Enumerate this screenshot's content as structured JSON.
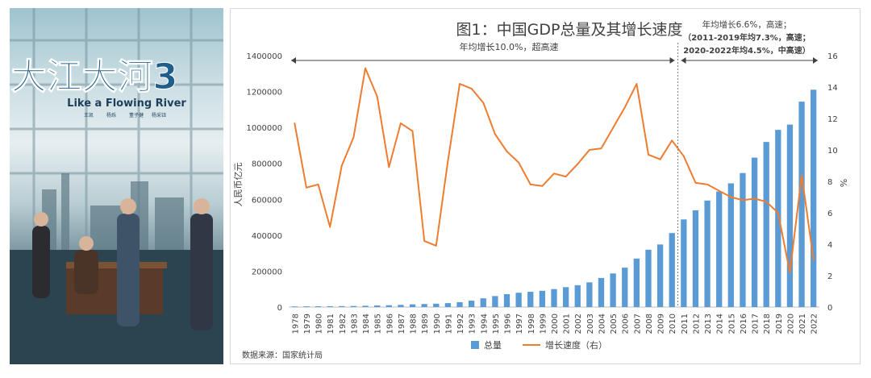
{
  "poster": {
    "title": "大江大河3",
    "subtitle": "Like a Flowing River",
    "cast": [
      "王凯",
      "杨烁",
      "董子健",
      "杨采钰"
    ]
  },
  "chart_data": {
    "type": "bar",
    "title": "图1：中国GDP总量及其增长速度",
    "ylabel": "人民币亿元",
    "y2label": "%",
    "source": "数据来源：国家统计局",
    "ylim": [
      0,
      1400000
    ],
    "y2lim": [
      0,
      16
    ],
    "yticks": [
      "0",
      "200000",
      "400000",
      "600000",
      "800000",
      "1000000",
      "1200000",
      "1400000"
    ],
    "y2ticks": [
      "0",
      "2",
      "4",
      "6",
      "8",
      "10",
      "12",
      "14",
      "16"
    ],
    "legend_position": "bottom",
    "categories": [
      "1978",
      "1979",
      "1980",
      "1981",
      "1982",
      "1983",
      "1984",
      "1985",
      "1986",
      "1987",
      "1988",
      "1989",
      "1990",
      "1991",
      "1992",
      "1993",
      "1994",
      "1995",
      "1996",
      "1997",
      "1998",
      "1999",
      "2000",
      "2001",
      "2002",
      "2003",
      "2004",
      "2005",
      "2006",
      "2007",
      "2008",
      "2009",
      "2010",
      "2011",
      "2012",
      "2013",
      "2014",
      "2015",
      "2016",
      "2017",
      "2018",
      "2019",
      "2020",
      "2021",
      "2022"
    ],
    "series": [
      {
        "name": "总量",
        "kind": "bar",
        "axis": "left",
        "color": "#5b9bd5",
        "values": [
          3679,
          4101,
          4588,
          4936,
          5373,
          6021,
          7279,
          9099,
          10376,
          12175,
          15180,
          17180,
          18873,
          22006,
          27195,
          35673,
          48638,
          61340,
          71814,
          79715,
          85196,
          90564,
          100280,
          110863,
          121717,
          137422,
          161840,
          187319,
          219439,
          270092,
          319245,
          348518,
          412119,
          487940,
          538580,
          592963,
          643563,
          688858,
          746395,
          832036,
          919281,
          986515,
          1015986,
          1143670,
          1210207
        ]
      },
      {
        "name": "增长速度（右）",
        "kind": "line",
        "axis": "right",
        "color": "#ed7d31",
        "values": [
          11.7,
          7.6,
          7.8,
          5.1,
          9.0,
          10.8,
          15.2,
          13.4,
          8.9,
          11.7,
          11.2,
          4.2,
          3.9,
          9.3,
          14.2,
          13.9,
          13.0,
          11.0,
          9.9,
          9.2,
          7.8,
          7.7,
          8.5,
          8.3,
          9.1,
          10.0,
          10.1,
          11.4,
          12.7,
          14.2,
          9.7,
          9.4,
          10.6,
          9.6,
          7.9,
          7.8,
          7.4,
          7.0,
          6.8,
          6.9,
          6.7,
          6.0,
          2.2,
          8.4,
          3.0
        ]
      }
    ],
    "annotations": {
      "left": "年均增长10.0%，超高速",
      "right_line1": "年均增长6.6%，高速；",
      "right_line2": "（2011-2019年均7.3%，高速；",
      "right_line3": "2020-2022年均4.5%，中高速）"
    },
    "divider_after": "2010"
  }
}
